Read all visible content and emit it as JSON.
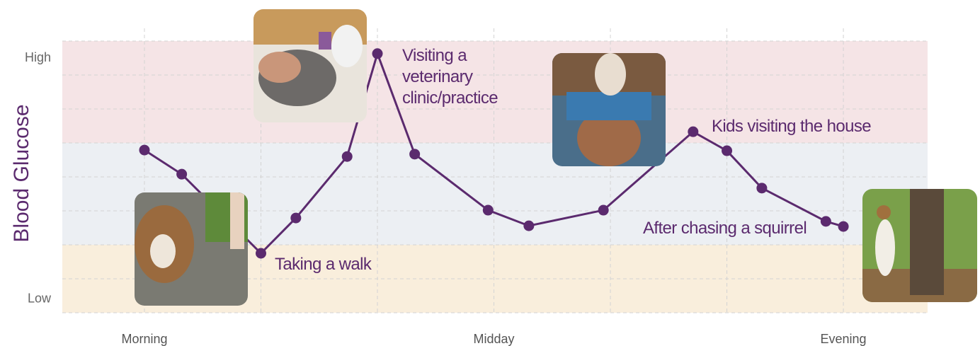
{
  "chart_data": {
    "type": "line",
    "y_label": "Blood Glucose",
    "x": [
      0,
      0.32,
      1.0,
      1.3,
      1.74,
      2.0,
      2.32,
      2.95,
      3.3,
      3.94,
      4.71,
      5.0,
      5.3,
      5.85,
      6.0
    ],
    "series": [
      {
        "name": null,
        "color": "#5b2a6e",
        "values": [
          4.79,
          4.08,
          1.75,
          2.79,
          4.6,
          7.63,
          4.67,
          3.02,
          2.56,
          3.02,
          5.33,
          4.77,
          3.67,
          2.69,
          2.54
        ]
      }
    ],
    "xlim": [
      -0.705,
      6.723
    ],
    "xticks": [
      {
        "value": 0,
        "label": "Morning"
      },
      {
        "value": 1,
        "label": null
      },
      {
        "value": 2,
        "label": null
      },
      {
        "value": 3,
        "label": "Midday"
      },
      {
        "value": 4,
        "label": null
      },
      {
        "value": 5,
        "label": null
      },
      {
        "value": 6,
        "label": "Evening"
      }
    ],
    "ylim": [
      0,
      8
    ],
    "yticks": [
      0,
      {
        "value": 0.4,
        "label": "Low"
      },
      1,
      2,
      3,
      4,
      5,
      6,
      7,
      {
        "value": 7.5,
        "label": "High"
      },
      8
    ],
    "bands": [
      {
        "from": 0,
        "to": 2,
        "color": "#f9eedc"
      },
      {
        "from": 2,
        "to": 5,
        "color": "#eceff3"
      },
      {
        "from": 5,
        "to": 8,
        "color": "#f5e4e6"
      }
    ],
    "grid": true,
    "annotations": [
      "Taking a walk",
      "Visiting a veterinary clinic/practice",
      "Kids visiting the house",
      "After chasing a squirrel"
    ]
  }
}
